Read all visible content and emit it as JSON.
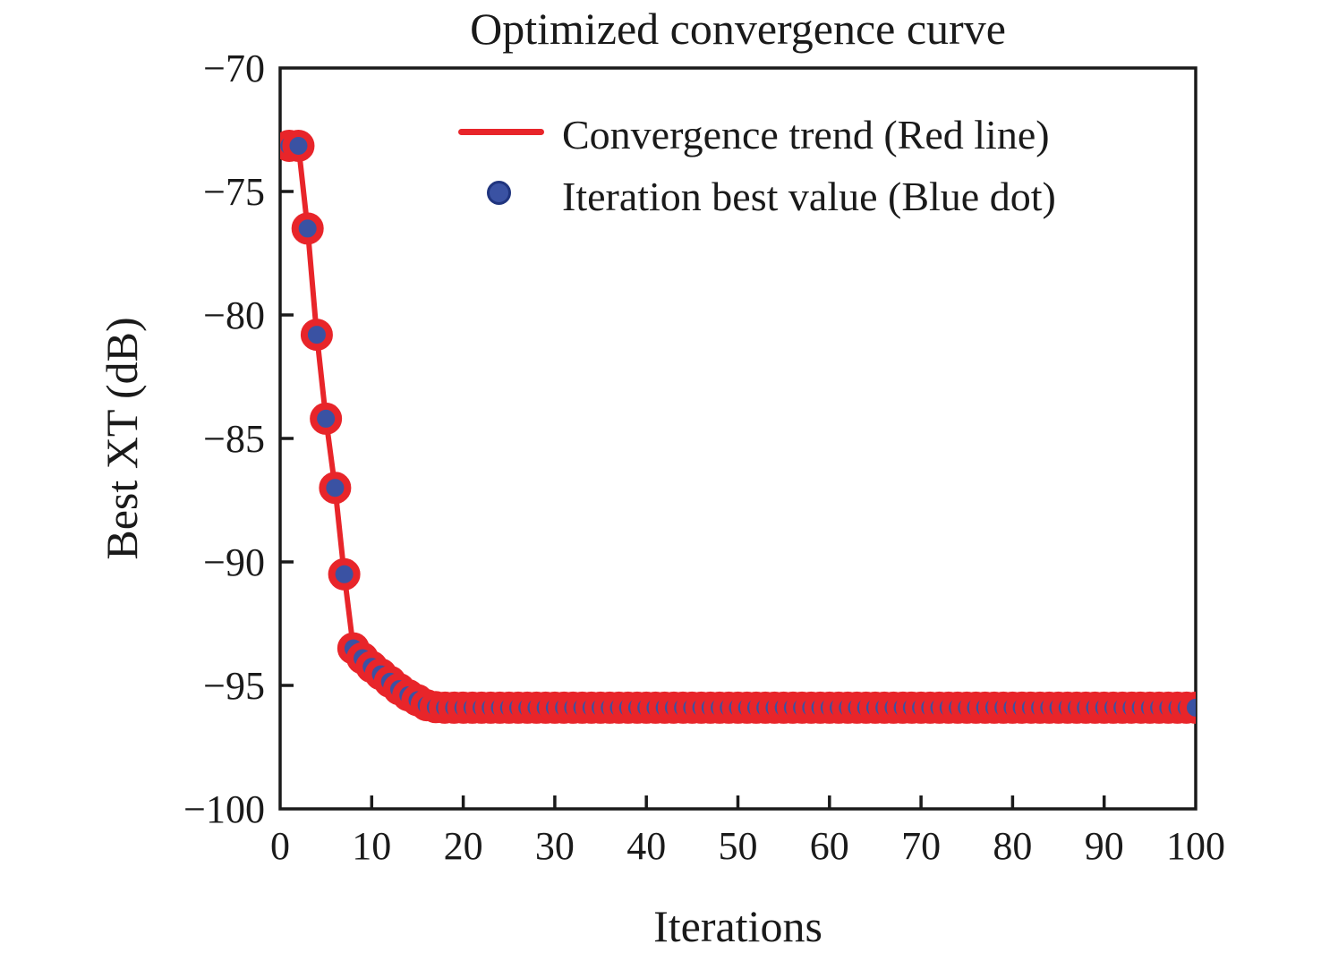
{
  "chart_data": {
    "type": "line+scatter",
    "title": "Optimized convergence curve",
    "xlabel": "Iterations",
    "ylabel": "Best XT (dB)",
    "xlim": [
      0,
      100
    ],
    "ylim": [
      -100,
      -70
    ],
    "x_ticks": [
      0,
      10,
      20,
      30,
      40,
      50,
      60,
      70,
      80,
      90,
      100
    ],
    "y_ticks": [
      -70,
      -75,
      -80,
      -85,
      -90,
      -95,
      -100
    ],
    "grid": false,
    "legend_position": "upper center, inside plot, no frame",
    "legend": [
      {
        "label": "Convergence trend (Red line)",
        "swatch": "line",
        "color": "#e8252a"
      },
      {
        "label": "Iteration best value (Blue dot)",
        "swatch": "dot",
        "color": "#3a52a3"
      }
    ],
    "series": [
      {
        "name": "Best XT",
        "x": [
          1,
          2,
          3,
          4,
          5,
          6,
          7,
          8,
          9,
          10,
          11,
          12,
          13,
          14,
          15,
          16,
          17,
          18,
          19,
          20,
          21,
          22,
          23,
          24,
          25,
          26,
          27,
          28,
          29,
          30,
          31,
          32,
          33,
          34,
          35,
          36,
          37,
          38,
          39,
          40,
          41,
          42,
          43,
          44,
          45,
          46,
          47,
          48,
          49,
          50,
          51,
          52,
          53,
          54,
          55,
          56,
          57,
          58,
          59,
          60,
          61,
          62,
          63,
          64,
          65,
          66,
          67,
          68,
          69,
          70,
          71,
          72,
          73,
          74,
          75,
          76,
          77,
          78,
          79,
          80,
          81,
          82,
          83,
          84,
          85,
          86,
          87,
          88,
          89,
          90,
          91,
          92,
          93,
          94,
          95,
          96,
          97,
          98,
          99,
          100
        ],
        "y": [
          -73.15,
          -73.15,
          -76.5,
          -80.8,
          -84.2,
          -87.0,
          -90.5,
          -93.5,
          -93.9,
          -94.25,
          -94.55,
          -94.85,
          -95.15,
          -95.4,
          -95.6,
          -95.8,
          -95.88,
          -95.9,
          -95.9,
          -95.9,
          -95.9,
          -95.9,
          -95.9,
          -95.9,
          -95.9,
          -95.9,
          -95.9,
          -95.9,
          -95.9,
          -95.9,
          -95.9,
          -95.9,
          -95.9,
          -95.9,
          -95.9,
          -95.9,
          -95.9,
          -95.9,
          -95.9,
          -95.9,
          -95.9,
          -95.9,
          -95.9,
          -95.9,
          -95.9,
          -95.9,
          -95.9,
          -95.9,
          -95.9,
          -95.9,
          -95.9,
          -95.9,
          -95.9,
          -95.9,
          -95.9,
          -95.9,
          -95.9,
          -95.9,
          -95.9,
          -95.9,
          -95.9,
          -95.9,
          -95.9,
          -95.9,
          -95.9,
          -95.9,
          -95.9,
          -95.9,
          -95.9,
          -95.9,
          -95.9,
          -95.9,
          -95.9,
          -95.9,
          -95.9,
          -95.9,
          -95.9,
          -95.9,
          -95.9,
          -95.9,
          -95.9,
          -95.9,
          -95.9,
          -95.9,
          -95.9,
          -95.9,
          -95.9,
          -95.9,
          -95.9,
          -95.9,
          -95.9,
          -95.9,
          -95.9,
          -95.9,
          -95.9,
          -95.9,
          -95.9,
          -95.9,
          -95.9,
          -95.9
        ]
      }
    ]
  },
  "style": {
    "line_color": "#e8252a",
    "marker_face_color": "#3a52a3",
    "marker_edge_color": "#e8252a",
    "legend_dot_edge_color": "#20357f",
    "axis_color": "#1a1a1a",
    "text_color": "#1a1a1a",
    "background": "#ffffff"
  }
}
